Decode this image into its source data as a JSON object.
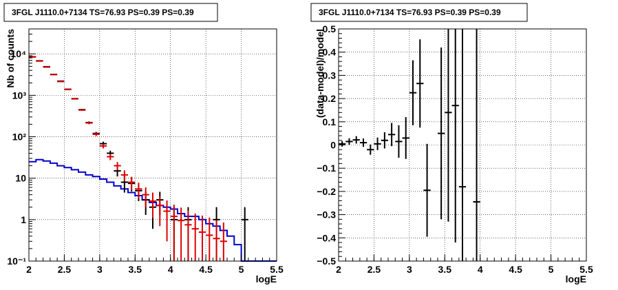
{
  "chart_data": [
    {
      "type": "line",
      "title": "3FGL J1110.0+7134 TS=76.93 PS=0.39 PS=0.39",
      "xlabel": "logE",
      "ylabel": "Nb of counts",
      "xlim": [
        2,
        5.5
      ],
      "ylim": [
        0.1,
        40000
      ],
      "yscale": "log",
      "grid": true,
      "x_ticks": [
        "2",
        "2.5",
        "3",
        "3.5",
        "4",
        "4.5",
        "5",
        "5.5"
      ],
      "y_ticks": [
        "10⁻¹",
        "1",
        "10",
        "10²",
        "10³",
        "10⁴"
      ],
      "series": [
        {
          "kind": "data-points",
          "color": "#000000",
          "x": [
            2.05,
            2.15,
            2.25,
            2.35,
            2.45,
            2.55,
            2.65,
            2.75,
            2.85,
            2.95,
            3.05,
            3.15,
            3.25,
            3.35,
            3.45,
            3.55,
            3.65,
            3.75,
            3.85,
            4.05,
            4.25,
            4.65,
            5.05
          ],
          "y": [
            8500,
            6800,
            4900,
            3200,
            2200,
            1400,
            830,
            450,
            220,
            120,
            68,
            40,
            15,
            8,
            7.5,
            5,
            3,
            2,
            3,
            1,
            1,
            1,
            1
          ],
          "yerr_low": [
            90,
            80,
            70,
            56,
            47,
            37,
            29,
            21,
            15,
            11,
            8,
            6,
            4,
            3.5,
            2.7,
            2.2,
            1.7,
            1.4,
            1.7,
            1,
            1,
            1,
            1
          ],
          "yerr_high": [
            90,
            80,
            70,
            56,
            47,
            37,
            29,
            21,
            15,
            11,
            8,
            6,
            4,
            3.5,
            2.7,
            2.2,
            1.7,
            1.4,
            1.7,
            1,
            1,
            1,
            1
          ]
        },
        {
          "kind": "model-points",
          "color": "#dd0000",
          "x": [
            2.05,
            2.15,
            2.25,
            2.35,
            2.45,
            2.55,
            2.65,
            2.75,
            2.85,
            2.95,
            3.05,
            3.15,
            3.25,
            3.35,
            3.45,
            3.55,
            3.65,
            3.75,
            3.85,
            3.95,
            4.05,
            4.15,
            4.25,
            4.35,
            4.45,
            4.55,
            4.65,
            4.75
          ],
          "y": [
            8400,
            6700,
            4800,
            3150,
            2150,
            1380,
            820,
            440,
            215,
            115,
            60,
            33,
            20,
            12,
            8,
            5.5,
            4,
            2.8,
            2.2,
            1.6,
            1.2,
            0.95,
            0.75,
            0.6,
            0.5,
            0.42,
            0.35,
            0.3
          ],
          "yerr_low": [
            92,
            82,
            69,
            56,
            46,
            37,
            29,
            21,
            15,
            11,
            7.7,
            5.7,
            4.5,
            3.5,
            2.8,
            2.3,
            2,
            1.7,
            1.5,
            1.3,
            1.1,
            0.95,
            0.75,
            0.6,
            0.5,
            0.42,
            0.35,
            0.3
          ],
          "yerr_high": [
            92,
            82,
            69,
            56,
            46,
            37,
            29,
            21,
            15,
            11,
            7.7,
            5.7,
            4.5,
            3.5,
            2.8,
            2.3,
            2,
            1.7,
            1.5,
            1.3,
            1.1,
            1,
            0.9,
            0.8,
            0.75,
            0.7,
            0.6,
            0.55
          ]
        },
        {
          "kind": "step",
          "color": "#0000cc",
          "x_edges": [
            2.0,
            2.1,
            2.2,
            2.3,
            2.4,
            2.5,
            2.6,
            2.7,
            2.8,
            2.9,
            3.0,
            3.1,
            3.2,
            3.3,
            3.4,
            3.5,
            3.6,
            3.7,
            3.8,
            3.9,
            4.0,
            4.1,
            4.2,
            4.3,
            4.4,
            4.5,
            4.6,
            4.7,
            4.8,
            4.9,
            5.0,
            5.1,
            5.2,
            5.3,
            5.4,
            5.5
          ],
          "y": [
            25,
            28,
            26,
            23,
            20,
            18,
            16,
            14,
            12,
            11,
            9.5,
            8,
            6.5,
            5.5,
            4.5,
            3.8,
            3,
            2.6,
            2.2,
            2,
            1.8,
            1.4,
            1.2,
            1.2,
            1,
            0.8,
            0.7,
            0.55,
            0.4,
            0.25,
            0.1,
            0.1,
            0.1,
            0.1,
            0.1
          ]
        }
      ]
    },
    {
      "type": "scatter",
      "title": "3FGL J1110.0+7134 TS=76.93 PS=0.39 PS=0.39",
      "xlabel": "logE",
      "ylabel": "(data-model)/model",
      "xlim": [
        2,
        5.5
      ],
      "ylim": [
        -0.5,
        0.5
      ],
      "grid": true,
      "x_ticks": [
        "2",
        "2.5",
        "3",
        "3.5",
        "4",
        "4.5",
        "5",
        "5.5"
      ],
      "y_ticks": [
        "−0.5",
        "−0.4",
        "−0.3",
        "−0.2",
        "−0.1",
        "0",
        "0.1",
        "0.2",
        "0.3",
        "0.4",
        "0.5"
      ],
      "series": [
        {
          "kind": "residual-points",
          "color": "#000000",
          "x": [
            2.05,
            2.15,
            2.25,
            2.35,
            2.45,
            2.55,
            2.65,
            2.75,
            2.85,
            2.95,
            3.05,
            3.15,
            3.25,
            3.45,
            3.55,
            3.65,
            3.75,
            3.95
          ],
          "y": [
            0.005,
            0.015,
            0.022,
            0.01,
            -0.02,
            0.005,
            0.02,
            0.045,
            0.015,
            0.03,
            0.225,
            0.265,
            -0.195,
            0.05,
            0.14,
            0.17,
            -0.18,
            -0.245
          ],
          "yerr": [
            0.012,
            0.014,
            0.016,
            0.018,
            0.022,
            0.027,
            0.035,
            0.05,
            0.07,
            0.09,
            0.14,
            0.19,
            0.2,
            0.37,
            0.47,
            0.59,
            0.7,
            0.8
          ]
        }
      ]
    }
  ]
}
